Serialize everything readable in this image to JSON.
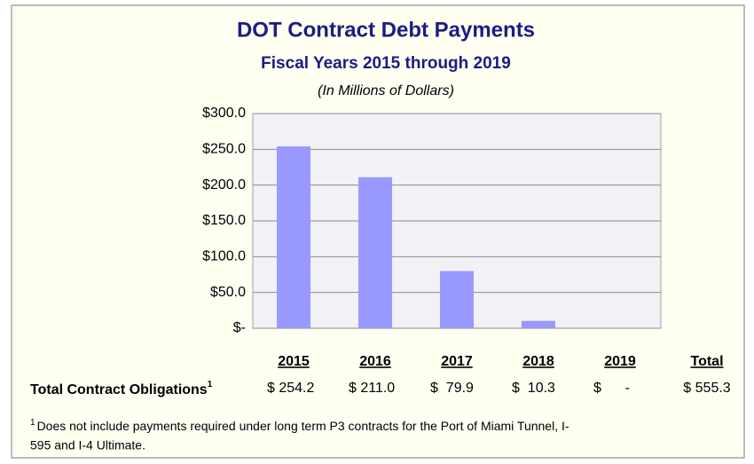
{
  "chart_data": {
    "type": "bar",
    "title": "DOT Contract Debt Payments",
    "subtitle": "Fiscal Years 2015 through 2019",
    "note": "(In Millions of Dollars)",
    "categories": [
      "2015",
      "2016",
      "2017",
      "2018",
      "2019"
    ],
    "values": [
      254.2,
      211.0,
      79.9,
      10.3,
      0
    ],
    "value_labels": [
      "$ 254.2",
      "$ 211.0",
      "$  79.9",
      "$  10.3",
      "$      -"
    ],
    "color": "#9999ff",
    "ylim": [
      0,
      300
    ],
    "yticks": [
      {
        "value": 0,
        "label": "$-"
      },
      {
        "value": 50,
        "label": "$50.0"
      },
      {
        "value": 100,
        "label": "$100.0"
      },
      {
        "value": 150,
        "label": "$150.0"
      },
      {
        "value": 200,
        "label": "$200.0"
      },
      {
        "value": 250,
        "label": "$250.0"
      },
      {
        "value": 300,
        "label": "$300.0"
      }
    ],
    "grid": true,
    "row_label": "Total Contract Obligations",
    "row_label_marker": "1",
    "total_label": "Total",
    "total_value_label": "$ 555.3",
    "footnote_marker": "1",
    "footnote_line1": "Does not include payments required under long term P3 contracts for the Port of Miami Tunnel, I-",
    "footnote_line2": "595 and I-4 Ultimate."
  }
}
